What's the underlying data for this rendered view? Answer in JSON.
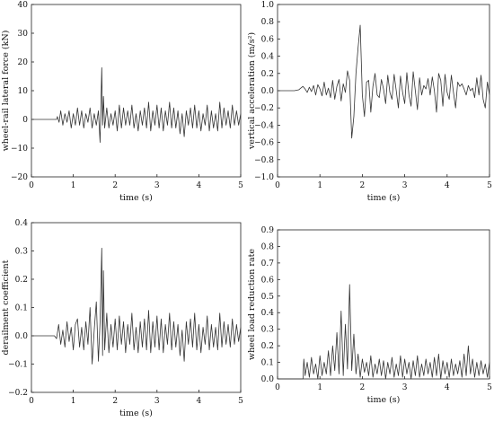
{
  "chart_data": [
    {
      "type": "line",
      "xlabel": "time (s)",
      "ylabel": "wheel-rail lateral force (kN)",
      "xlim": [
        0,
        5
      ],
      "ylim": [
        -20,
        40
      ],
      "xticks": [
        0,
        1,
        2,
        3,
        4,
        5
      ],
      "yticks": [
        -20,
        -10,
        0,
        10,
        20,
        30,
        40
      ],
      "ytick_labels": [
        "−20",
        "−10",
        "0",
        "10",
        "20",
        "30",
        "40"
      ],
      "series": [
        {
          "x": [
            0,
            0.6,
            0.62,
            0.66,
            0.7,
            0.75,
            0.8,
            0.85,
            0.9,
            0.95,
            1.0,
            1.05,
            1.1,
            1.15,
            1.2,
            1.25,
            1.3,
            1.35,
            1.4,
            1.45,
            1.5,
            1.55,
            1.6,
            1.64,
            1.68,
            1.7,
            1.72,
            1.75,
            1.8,
            1.85,
            1.9,
            1.95,
            2.0,
            2.05,
            2.1,
            2.15,
            2.2,
            2.25,
            2.3,
            2.35,
            2.4,
            2.45,
            2.5,
            2.55,
            2.6,
            2.65,
            2.7,
            2.75,
            2.8,
            2.85,
            2.9,
            2.95,
            3.0,
            3.05,
            3.1,
            3.15,
            3.2,
            3.25,
            3.3,
            3.35,
            3.4,
            3.45,
            3.5,
            3.55,
            3.6,
            3.65,
            3.7,
            3.75,
            3.8,
            3.85,
            3.9,
            3.95,
            4.0,
            4.05,
            4.1,
            4.15,
            4.2,
            4.25,
            4.3,
            4.35,
            4.4,
            4.45,
            4.5,
            4.55,
            4.6,
            4.65,
            4.7,
            4.75,
            4.8,
            4.85,
            4.9,
            4.95,
            5.0
          ],
          "y": [
            0,
            0,
            1,
            -1,
            3,
            -2,
            2,
            -1,
            3,
            -3,
            2,
            -2,
            4,
            -2,
            3,
            -3,
            2,
            -1,
            4,
            -3,
            2,
            -2,
            3,
            -8,
            18,
            -2,
            8,
            -3,
            4,
            -3,
            2,
            -2,
            3,
            -4,
            5,
            -3,
            4,
            -2,
            3,
            -2,
            5,
            -3,
            2,
            -4,
            3,
            -2,
            4,
            -3,
            6,
            -4,
            3,
            -2,
            5,
            -3,
            4,
            -4,
            3,
            -2,
            6,
            -3,
            4,
            -3,
            3,
            -5,
            2,
            -6,
            3,
            -2,
            4,
            -3,
            5,
            -3,
            3,
            -4,
            2,
            -2,
            5,
            -4,
            3,
            -3,
            2,
            -4,
            6,
            -3,
            4,
            -2,
            3,
            -3,
            5,
            -2,
            3,
            -2,
            2
          ]
        }
      ]
    },
    {
      "type": "line",
      "xlabel": "time (s)",
      "ylabel": "vertical acceleration (m/s²)",
      "xlim": [
        0,
        5
      ],
      "ylim": [
        -1.0,
        1.0
      ],
      "xticks": [
        0,
        1,
        2,
        3,
        4,
        5
      ],
      "yticks": [
        -1.0,
        -0.8,
        -0.6,
        -0.4,
        -0.2,
        0.0,
        0.2,
        0.4,
        0.6,
        0.8,
        1.0
      ],
      "ytick_labels": [
        "−1.0",
        "−0.8",
        "−0.6",
        "−0.4",
        "−0.2",
        "0.0",
        "0.2",
        "0.4",
        "0.6",
        "0.8",
        "1.0"
      ],
      "series": [
        {
          "x": [
            0,
            0.4,
            0.5,
            0.55,
            0.6,
            0.65,
            0.7,
            0.75,
            0.8,
            0.85,
            0.9,
            0.95,
            1.0,
            1.05,
            1.1,
            1.15,
            1.2,
            1.25,
            1.3,
            1.35,
            1.4,
            1.45,
            1.5,
            1.55,
            1.6,
            1.65,
            1.7,
            1.75,
            1.8,
            1.85,
            1.9,
            1.95,
            2.0,
            2.05,
            2.1,
            2.15,
            2.2,
            2.25,
            2.3,
            2.35,
            2.4,
            2.45,
            2.5,
            2.55,
            2.6,
            2.65,
            2.7,
            2.75,
            2.8,
            2.85,
            2.9,
            2.95,
            3.0,
            3.05,
            3.1,
            3.15,
            3.2,
            3.25,
            3.3,
            3.35,
            3.4,
            3.45,
            3.5,
            3.55,
            3.6,
            3.65,
            3.7,
            3.75,
            3.8,
            3.85,
            3.9,
            3.95,
            4.0,
            4.05,
            4.1,
            4.15,
            4.2,
            4.25,
            4.3,
            4.35,
            4.4,
            4.45,
            4.5,
            4.55,
            4.6,
            4.65,
            4.7,
            4.75,
            4.8,
            4.85,
            4.9,
            4.95,
            5.0
          ],
          "y": [
            0,
            0,
            0.01,
            0.03,
            0.05,
            0.02,
            -0.02,
            0.04,
            -0.01,
            0.06,
            -0.05,
            0.07,
            0.02,
            -0.06,
            0.1,
            -0.05,
            0.03,
            -0.08,
            0.12,
            -0.1,
            0.05,
            0.13,
            -0.12,
            0.08,
            -0.02,
            0.23,
            0.12,
            -0.55,
            -0.3,
            0.2,
            0.5,
            0.76,
            -0.05,
            -0.3,
            0.1,
            0.12,
            -0.25,
            0.05,
            0.2,
            -0.05,
            -0.08,
            0.13,
            0.02,
            -0.15,
            0.18,
            -0.02,
            -0.1,
            0.19,
            0.0,
            -0.2,
            0.17,
            -0.02,
            -0.15,
            0.21,
            -0.05,
            -0.18,
            0.22,
            0.0,
            -0.22,
            0.15,
            -0.05,
            0.06,
            0.02,
            0.14,
            -0.05,
            0.16,
            0.0,
            -0.25,
            0.2,
            0.12,
            -0.18,
            0.19,
            -0.02,
            -0.1,
            0.18,
            -0.02,
            -0.2,
            0.1,
            0.05,
            0.08,
            0.02,
            -0.05,
            0.06,
            0.0,
            0.03,
            -0.08,
            0.15,
            -0.05,
            0.18,
            -0.1,
            -0.2,
            0.1,
            -0.05
          ]
        }
      ]
    },
    {
      "type": "line",
      "xlabel": "time (s)",
      "ylabel": "derailment coefficient",
      "xlim": [
        0,
        5
      ],
      "ylim": [
        -0.2,
        0.4
      ],
      "xticks": [
        0,
        1,
        2,
        3,
        4,
        5
      ],
      "yticks": [
        -0.2,
        -0.1,
        0.0,
        0.1,
        0.2,
        0.3,
        0.4
      ],
      "ytick_labels": [
        "−0.2",
        "−0.1",
        "0.0",
        "0.1",
        "0.2",
        "0.3",
        "0.4"
      ],
      "series": [
        {
          "x": [
            0,
            0.55,
            0.6,
            0.65,
            0.7,
            0.75,
            0.8,
            0.85,
            0.9,
            0.95,
            1.0,
            1.05,
            1.1,
            1.15,
            1.2,
            1.25,
            1.3,
            1.35,
            1.4,
            1.45,
            1.5,
            1.55,
            1.6,
            1.64,
            1.68,
            1.7,
            1.72,
            1.75,
            1.8,
            1.85,
            1.9,
            1.95,
            2.0,
            2.05,
            2.1,
            2.15,
            2.2,
            2.25,
            2.3,
            2.35,
            2.4,
            2.45,
            2.5,
            2.55,
            2.6,
            2.65,
            2.7,
            2.75,
            2.8,
            2.85,
            2.9,
            2.95,
            3.0,
            3.05,
            3.1,
            3.15,
            3.2,
            3.25,
            3.3,
            3.35,
            3.4,
            3.45,
            3.5,
            3.55,
            3.6,
            3.65,
            3.7,
            3.75,
            3.8,
            3.85,
            3.9,
            3.95,
            4.0,
            4.05,
            4.1,
            4.15,
            4.2,
            4.25,
            4.3,
            4.35,
            4.4,
            4.45,
            4.5,
            4.55,
            4.6,
            4.65,
            4.7,
            4.75,
            4.8,
            4.85,
            4.9,
            4.95,
            5.0
          ],
          "y": [
            0,
            0,
            -0.01,
            0.04,
            -0.03,
            0.02,
            -0.04,
            0.05,
            -0.02,
            0.03,
            -0.05,
            0.04,
            0.06,
            -0.04,
            0.03,
            -0.05,
            0.05,
            -0.03,
            0.1,
            -0.1,
            0.02,
            0.12,
            -0.09,
            0.05,
            0.31,
            -0.07,
            0.23,
            -0.05,
            0.08,
            -0.06,
            0.04,
            -0.04,
            0.06,
            -0.05,
            0.07,
            -0.03,
            0.05,
            -0.06,
            0.04,
            -0.03,
            0.08,
            -0.05,
            0.03,
            -0.06,
            0.05,
            -0.04,
            0.06,
            -0.05,
            0.09,
            -0.06,
            0.05,
            -0.04,
            0.07,
            -0.05,
            0.06,
            -0.06,
            0.04,
            -0.03,
            0.08,
            -0.05,
            0.05,
            -0.04,
            0.04,
            -0.07,
            0.02,
            -0.09,
            0.05,
            -0.03,
            0.06,
            -0.04,
            0.08,
            -0.05,
            0.04,
            -0.06,
            0.03,
            -0.03,
            0.07,
            -0.05,
            0.04,
            -0.04,
            0.03,
            -0.05,
            0.08,
            -0.04,
            0.05,
            -0.03,
            0.04,
            -0.04,
            0.06,
            -0.03,
            0.04,
            -0.02,
            0.03
          ]
        }
      ]
    },
    {
      "type": "line",
      "xlabel": "time (s)",
      "ylabel": "wheel load reduction rate",
      "xlim": [
        0,
        5
      ],
      "ylim": [
        0,
        0.9
      ],
      "xticks": [
        0,
        1,
        2,
        3,
        4,
        5
      ],
      "yticks": [
        0.0,
        0.1,
        0.2,
        0.3,
        0.4,
        0.5,
        0.6,
        0.7,
        0.8,
        0.9
      ],
      "ytick_labels": [
        "0.0",
        "0.1",
        "0.2",
        "0.3",
        "0.4",
        "0.5",
        "0.6",
        "0.7",
        "0.8",
        "0.9"
      ],
      "series": [
        {
          "x": [
            0,
            0.6,
            0.62,
            0.65,
            0.7,
            0.75,
            0.8,
            0.85,
            0.9,
            0.95,
            1.0,
            1.05,
            1.1,
            1.15,
            1.2,
            1.25,
            1.3,
            1.35,
            1.4,
            1.45,
            1.5,
            1.55,
            1.6,
            1.65,
            1.7,
            1.75,
            1.8,
            1.85,
            1.9,
            1.95,
            2.0,
            2.05,
            2.1,
            2.15,
            2.2,
            2.25,
            2.3,
            2.35,
            2.4,
            2.45,
            2.5,
            2.55,
            2.6,
            2.65,
            2.7,
            2.75,
            2.8,
            2.85,
            2.9,
            2.95,
            3.0,
            3.05,
            3.1,
            3.15,
            3.2,
            3.25,
            3.3,
            3.35,
            3.4,
            3.45,
            3.5,
            3.55,
            3.6,
            3.65,
            3.7,
            3.75,
            3.8,
            3.85,
            3.9,
            3.95,
            4.0,
            4.05,
            4.1,
            4.15,
            4.2,
            4.25,
            4.3,
            4.35,
            4.4,
            4.45,
            4.5,
            4.55,
            4.6,
            4.65,
            4.7,
            4.75,
            4.8,
            4.85,
            4.9,
            4.95,
            5.0
          ],
          "y": [
            0,
            0,
            0.12,
            0.02,
            0.1,
            0.01,
            0.13,
            0.03,
            0.09,
            0.0,
            0.14,
            0.02,
            0.1,
            0.03,
            0.17,
            0.02,
            0.2,
            0.05,
            0.28,
            0.03,
            0.41,
            0.02,
            0.33,
            0.06,
            0.57,
            0.05,
            0.27,
            0.03,
            0.15,
            0.01,
            0.12,
            0.04,
            0.1,
            0.02,
            0.14,
            0.01,
            0.09,
            0.03,
            0.12,
            0.02,
            0.11,
            0.0,
            0.1,
            0.03,
            0.13,
            0.01,
            0.09,
            0.02,
            0.14,
            0.01,
            0.12,
            0.03,
            0.1,
            0.0,
            0.11,
            0.02,
            0.14,
            0.01,
            0.09,
            0.02,
            0.12,
            0.03,
            0.1,
            0.01,
            0.13,
            0.02,
            0.15,
            0.0,
            0.11,
            0.03,
            0.1,
            0.01,
            0.12,
            0.02,
            0.09,
            0.03,
            0.11,
            0.01,
            0.15,
            0.02,
            0.2,
            0.03,
            0.12,
            0.01,
            0.1,
            0.02,
            0.11,
            0.03,
            0.09,
            0.01,
            0.1
          ]
        }
      ]
    }
  ]
}
